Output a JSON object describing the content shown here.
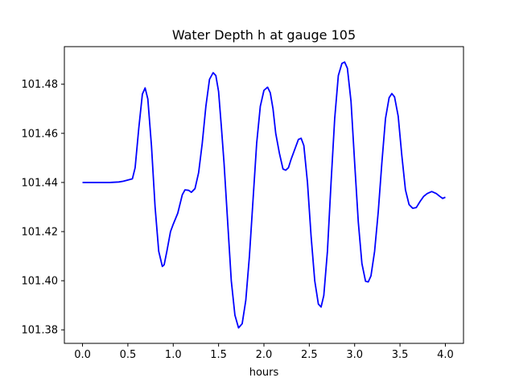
{
  "chart_data": {
    "type": "line",
    "title": "Water Depth h at gauge 105",
    "xlabel": "hours",
    "ylabel": "",
    "xlim": [
      -0.2,
      4.2
    ],
    "ylim": [
      101.3745,
      101.4953
    ],
    "grid": false,
    "line_color": "#0000ff",
    "x_ticks": [
      "0.0",
      "0.5",
      "1.0",
      "1.5",
      "2.0",
      "2.5",
      "3.0",
      "3.5",
      "4.0"
    ],
    "y_ticks": [
      "101.38",
      "101.40",
      "101.42",
      "101.44",
      "101.46",
      "101.48"
    ],
    "series": [
      {
        "x": [
          0.0,
          0.1,
          0.2,
          0.3,
          0.4,
          0.45,
          0.5,
          0.55,
          0.58,
          0.62,
          0.66,
          0.69,
          0.72,
          0.76,
          0.8,
          0.84,
          0.88,
          0.9,
          0.93,
          0.97,
          1.0,
          1.05,
          1.1,
          1.13,
          1.17,
          1.2,
          1.24,
          1.28,
          1.32,
          1.36,
          1.4,
          1.44,
          1.47,
          1.5,
          1.53,
          1.56,
          1.6,
          1.64,
          1.68,
          1.72,
          1.76,
          1.8,
          1.84,
          1.88,
          1.92,
          1.96,
          2.0,
          2.04,
          2.07,
          2.1,
          2.13,
          2.17,
          2.21,
          2.24,
          2.27,
          2.3,
          2.34,
          2.38,
          2.41,
          2.44,
          2.48,
          2.52,
          2.56,
          2.6,
          2.63,
          2.66,
          2.7,
          2.74,
          2.78,
          2.82,
          2.86,
          2.89,
          2.92,
          2.96,
          3.0,
          3.04,
          3.08,
          3.12,
          3.15,
          3.18,
          3.22,
          3.26,
          3.3,
          3.34,
          3.38,
          3.41,
          3.44,
          3.48,
          3.52,
          3.56,
          3.6,
          3.64,
          3.68,
          3.72,
          3.76,
          3.8,
          3.85,
          3.9,
          3.94,
          3.97,
          4.0
        ],
        "y": [
          101.44,
          101.44,
          101.44,
          101.44,
          101.4402,
          101.4405,
          101.441,
          101.4415,
          101.446,
          101.462,
          101.476,
          101.4785,
          101.474,
          101.455,
          101.43,
          101.412,
          101.4058,
          101.4065,
          101.412,
          101.42,
          101.423,
          101.4275,
          101.435,
          101.437,
          101.4368,
          101.436,
          101.4375,
          101.444,
          101.456,
          101.471,
          101.482,
          101.4847,
          101.4835,
          101.477,
          101.463,
          101.448,
          101.424,
          101.4,
          101.386,
          101.3808,
          101.3825,
          101.392,
          101.41,
          101.433,
          101.456,
          101.471,
          101.4775,
          101.4788,
          101.4765,
          101.47,
          101.46,
          101.452,
          101.4455,
          101.445,
          101.446,
          101.4495,
          101.4535,
          101.4575,
          101.458,
          101.455,
          101.44,
          101.418,
          101.4,
          101.3905,
          101.3893,
          101.394,
          101.412,
          101.44,
          101.466,
          101.4835,
          101.4885,
          101.489,
          101.4865,
          101.473,
          101.448,
          101.424,
          101.407,
          101.3998,
          101.3995,
          101.402,
          101.412,
          101.428,
          101.448,
          101.466,
          101.4745,
          101.4762,
          101.4748,
          101.467,
          101.451,
          101.437,
          101.431,
          101.4295,
          101.4298,
          101.4322,
          101.4343,
          101.4355,
          101.4363,
          101.4355,
          101.4343,
          101.4335,
          101.434
        ]
      }
    ]
  }
}
